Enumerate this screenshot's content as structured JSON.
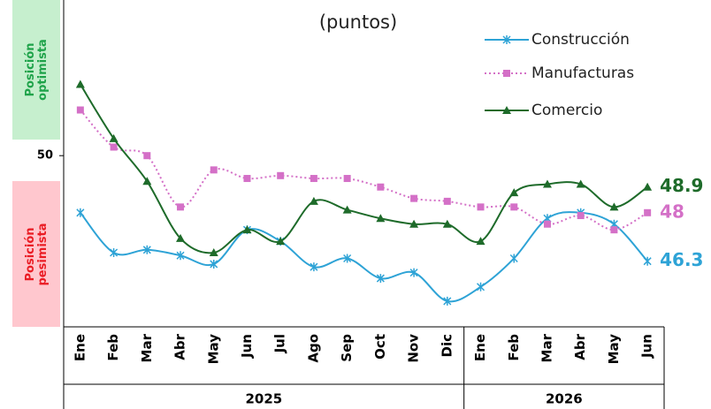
{
  "chart_data": {
    "type": "line",
    "title": "(puntos)",
    "annotations": [
      "Posición optimista",
      "Posición pesimista"
    ],
    "categories": [
      "Ene",
      "Feb",
      "Mar",
      "Abr",
      "May",
      "Jun",
      "Jul",
      "Ago",
      "Sep",
      "Oct",
      "Nov",
      "Dic",
      "Ene",
      "Feb",
      "Mar",
      "Abr",
      "May",
      "Jun"
    ],
    "year_groups": [
      {
        "label": "2025",
        "categories": 12
      },
      {
        "label": "2026",
        "categories": 6
      }
    ],
    "ylim": [
      44,
      55.3
    ],
    "yticks": [
      50
    ],
    "series": [
      {
        "name": "Construcción",
        "color": "#2ea3d6",
        "marker": "star",
        "dash": "solid",
        "values": [
          48.0,
          46.6,
          46.7,
          46.5,
          46.2,
          47.4,
          47.0,
          46.1,
          46.4,
          45.7,
          45.9,
          44.9,
          45.4,
          46.4,
          47.8,
          48.0,
          47.6,
          46.3
        ]
      },
      {
        "name": "Manufacturas",
        "color": "#d470c7",
        "marker": "square",
        "dash": "dotted",
        "values": [
          51.6,
          50.3,
          50.0,
          48.2,
          49.5,
          49.2,
          49.3,
          49.2,
          49.2,
          48.9,
          48.5,
          48.4,
          48.2,
          48.2,
          47.6,
          47.9,
          47.4,
          48.0
        ]
      },
      {
        "name": "Comercio",
        "color": "#1e6b2a",
        "marker": "triangle",
        "dash": "solid",
        "values": [
          52.5,
          50.6,
          49.1,
          47.1,
          46.6,
          47.4,
          47.0,
          48.4,
          48.1,
          47.8,
          47.6,
          47.6,
          47.0,
          48.7,
          49.0,
          49.0,
          48.2,
          48.9
        ]
      }
    ]
  }
}
